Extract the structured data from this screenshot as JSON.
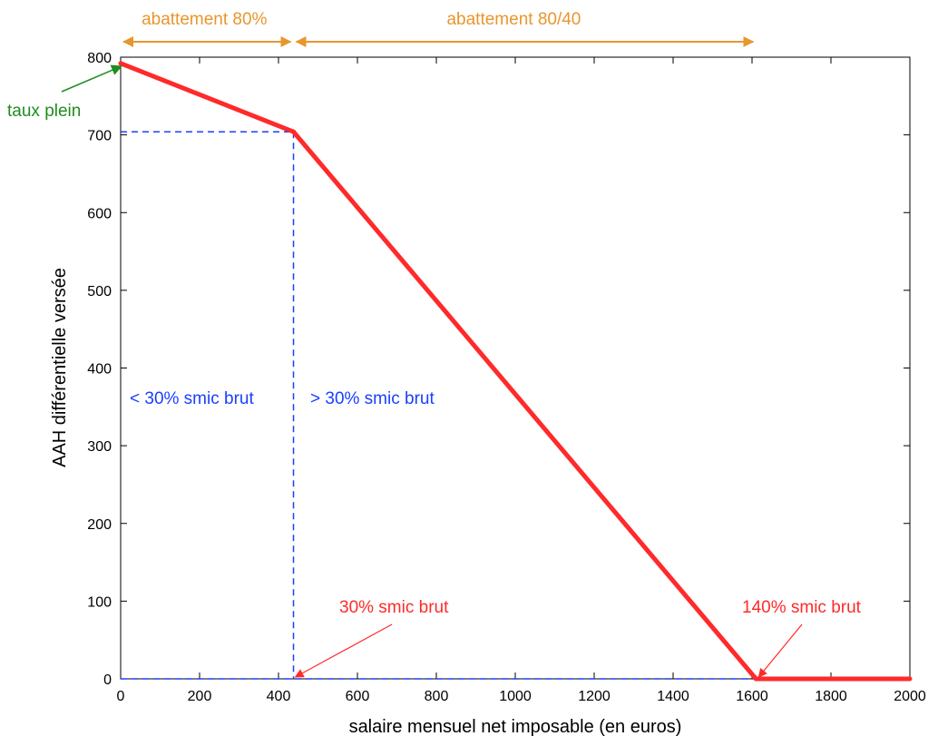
{
  "colors": {
    "curve": "#ff2a2a",
    "threshold": "#1a3fff",
    "range": "#e8962e",
    "taux_plein": "#1f8c1f",
    "axis": "#000000"
  },
  "chart_data": {
    "type": "line",
    "title": "",
    "xlabel": "salaire mensuel net imposable (en euros)",
    "ylabel": "AAH différentielle versée",
    "xlim": [
      0,
      2000
    ],
    "ylim": [
      0,
      800
    ],
    "xticks": [
      "0",
      "200",
      "400",
      "600",
      "800",
      "1000",
      "1200",
      "1400",
      "1600",
      "1800",
      "2000"
    ],
    "yticks": [
      "0",
      "100",
      "200",
      "300",
      "400",
      "500",
      "600",
      "700",
      "800"
    ],
    "grid": false,
    "series": [
      {
        "x": [
          0,
          438,
          1610,
          2000
        ],
        "y": [
          792,
          704,
          0,
          0
        ]
      }
    ],
    "reference_lines": {
      "threshold_x": 438,
      "threshold_y": 704
    },
    "annotations": {
      "range_80": {
        "label": "abattement 80%",
        "x_from": 0,
        "x_to": 438
      },
      "range_80_40": {
        "label": "abattement 80/40",
        "x_from": 438,
        "x_to": 1610
      },
      "taux_plein": {
        "label": "taux plein",
        "point": [
          0,
          792
        ]
      },
      "below_threshold": "< 30% smic brut",
      "above_threshold": "> 30% smic brut",
      "smic_30": {
        "label": "30% smic brut",
        "point": [
          438,
          0
        ]
      },
      "smic_140": {
        "label": "140% smic brut",
        "point": [
          1610,
          0
        ]
      }
    }
  }
}
